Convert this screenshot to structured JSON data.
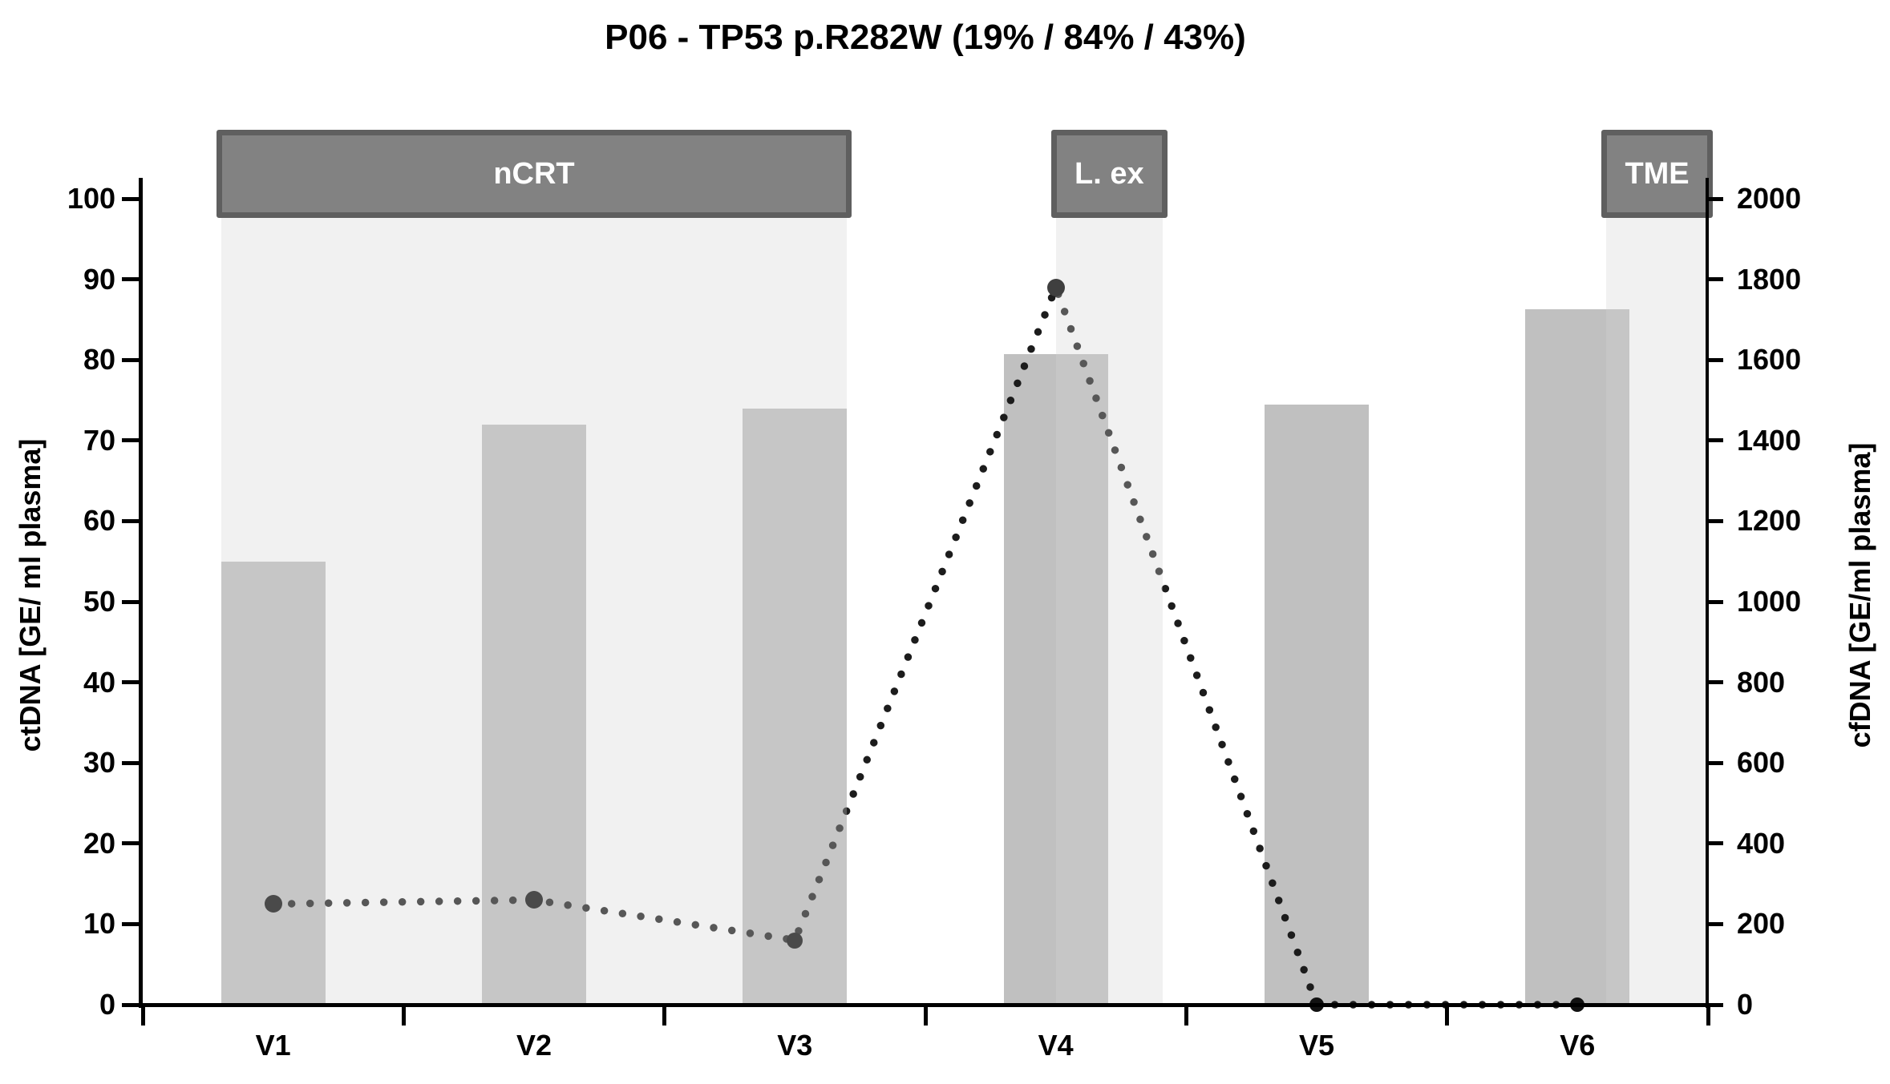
{
  "title": "P06 - TP53 p.R282W (19% / 84% / 43%)",
  "chart_data": {
    "type": "bar",
    "subtype": "combo-bar-and-dotted-line",
    "categories": [
      "V1",
      "V2",
      "V3",
      "V4",
      "V5",
      "V6"
    ],
    "series": [
      {
        "name": "cfDNA",
        "type": "bar",
        "axis": "right",
        "values": [
          1100,
          1440,
          1480,
          1615,
          1490,
          1725
        ]
      },
      {
        "name": "ctDNA",
        "type": "dotted-line",
        "axis": "left",
        "values": [
          12.5,
          13,
          8,
          89,
          0,
          0
        ],
        "marker_radii": [
          11,
          11,
          10,
          11,
          9,
          9
        ],
        "marker_colors": [
          "#4a4a4a",
          "#4a4a4a",
          "#4a4a4a",
          "#3f3f3f",
          "#111111",
          "#111111"
        ]
      }
    ],
    "left_axis": {
      "label": "ctDNA [GE/ ml plasma]",
      "min": 0,
      "max": 100,
      "step": 10
    },
    "right_axis": {
      "label": "cfDNA [GE/ml plasma]",
      "min": 0,
      "max": 2000,
      "step": 200
    },
    "grid": false,
    "legend": "none",
    "annotations": {
      "phases": [
        {
          "label": "nCRT",
          "from_slot": 0.3,
          "to_slot": 2.7
        },
        {
          "label": "L. ex",
          "from_slot": 3.5,
          "to_slot": 3.91
        },
        {
          "label": "TME",
          "from_slot": 5.61,
          "to_slot": 6.0
        }
      ]
    }
  },
  "colors": {
    "background": "#ffffff",
    "bar_fill": "#c0c0c0",
    "band_fill": "rgba(210,210,210,0.32)",
    "phase_box_fill": "#828282",
    "phase_box_border": "#5f5f5f",
    "phase_label_text": "#ffffff",
    "dotted_line": "#1c1c1c",
    "axis": "#000000",
    "text": "#000000"
  }
}
